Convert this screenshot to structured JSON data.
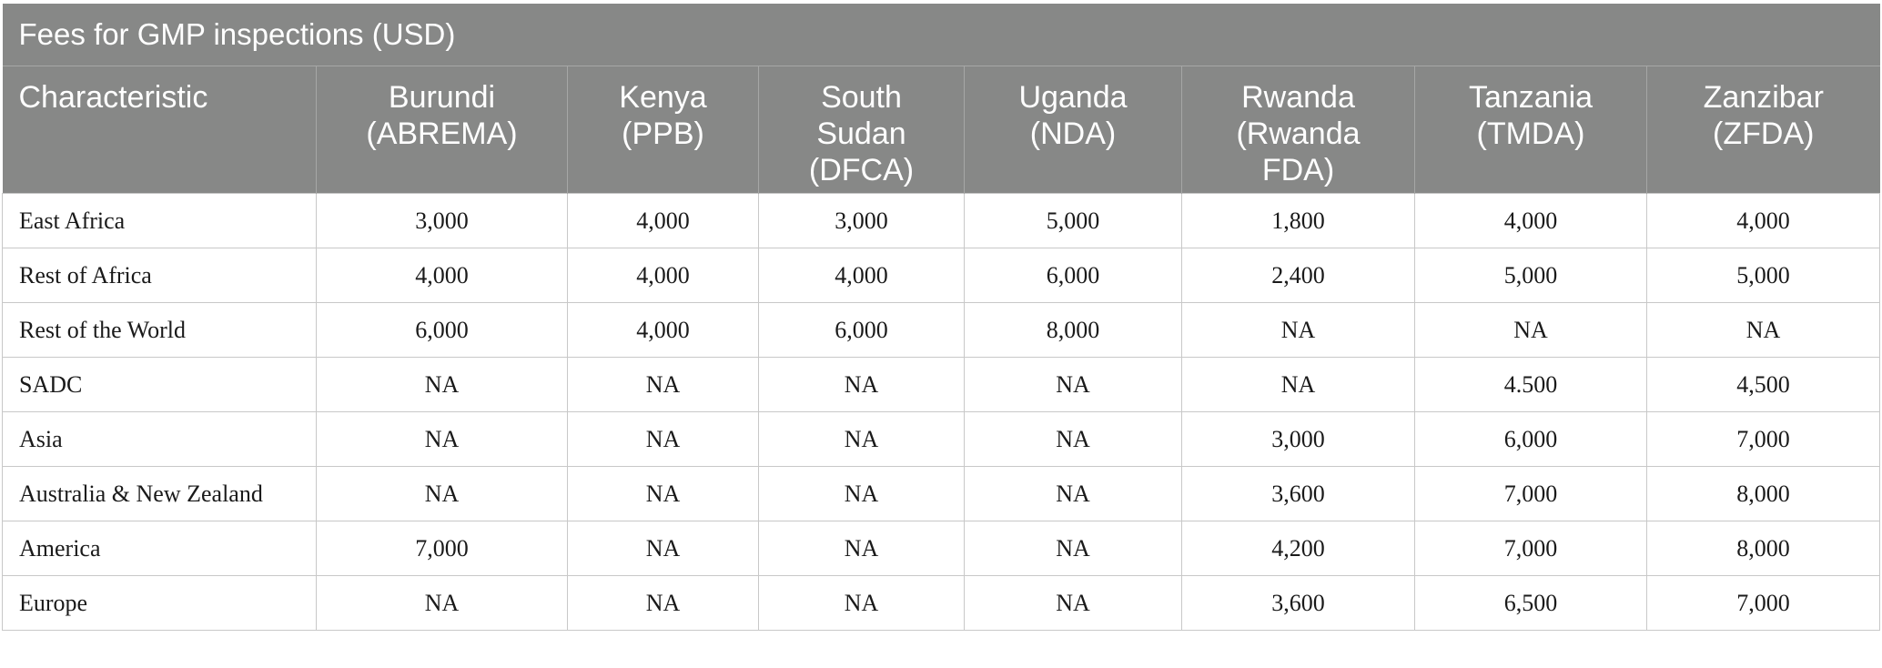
{
  "table": {
    "title": "Fees for GMP inspections (USD)",
    "columns": [
      {
        "label_lines": [
          "Characteristic"
        ]
      },
      {
        "label_lines": [
          "Burundi",
          "(ABREMA)"
        ]
      },
      {
        "label_lines": [
          "Kenya",
          "(PPB)"
        ]
      },
      {
        "label_lines": [
          "South",
          "Sudan",
          "(DFCA)"
        ]
      },
      {
        "label_lines": [
          "Uganda",
          "(NDA)"
        ]
      },
      {
        "label_lines": [
          "Rwanda",
          "(Rwanda",
          "FDA)"
        ]
      },
      {
        "label_lines": [
          "Tanzania",
          "(TMDA)"
        ]
      },
      {
        "label_lines": [
          "Zanzibar",
          "(ZFDA)"
        ]
      }
    ],
    "rows": [
      [
        "East Africa",
        "3,000",
        "4,000",
        "3,000",
        "5,000",
        "1,800",
        "4,000",
        "4,000"
      ],
      [
        "Rest of Africa",
        "4,000",
        "4,000",
        "4,000",
        "6,000",
        "2,400",
        "5,000",
        "5,000"
      ],
      [
        "Rest of the World",
        "6,000",
        "4,000",
        "6,000",
        "8,000",
        "NA",
        "NA",
        "NA"
      ],
      [
        "SADC",
        "NA",
        "NA",
        "NA",
        "NA",
        "NA",
        "4.500",
        "4,500"
      ],
      [
        "Asia",
        "NA",
        "NA",
        "NA",
        "NA",
        "3,000",
        "6,000",
        "7,000"
      ],
      [
        "Australia & New Zealand",
        "NA",
        "NA",
        "NA",
        "NA",
        "3,600",
        "7,000",
        "8,000"
      ],
      [
        "America",
        "7,000",
        "NA",
        "NA",
        "NA",
        "4,200",
        "7,000",
        "8,000"
      ],
      [
        "Europe",
        "NA",
        "NA",
        "NA",
        "NA",
        "3,600",
        "6,500",
        "7,000"
      ]
    ]
  }
}
